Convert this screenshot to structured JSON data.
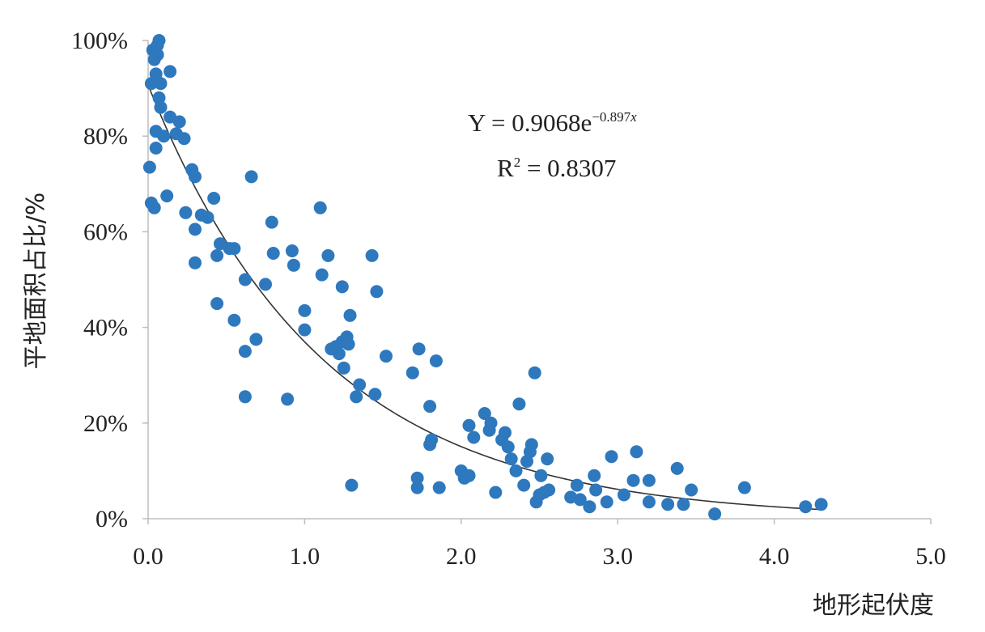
{
  "chart_data": {
    "type": "scatter",
    "xlabel": "地形起伏度",
    "ylabel": "平地面积占比/%",
    "xlim": [
      0,
      5
    ],
    "ylim": [
      0,
      100
    ],
    "x_ticks": [
      "0.0",
      "1.0",
      "2.0",
      "3.0",
      "4.0",
      "5.0"
    ],
    "y_ticks": [
      "0%",
      "20%",
      "40%",
      "60%",
      "80%",
      "100%"
    ],
    "grid": false,
    "legend": "none",
    "point_color": "#2e78be",
    "trendline": {
      "type": "exponential",
      "a": 0.9068,
      "b": -0.897,
      "x_range": [
        0,
        4.3
      ],
      "color": "#333333",
      "equation_text": {
        "base": "Y = 0.9068e",
        "exponent": "−0.897",
        "exponent_var": "x"
      },
      "r2_text": {
        "label": "R",
        "power": "2",
        "value": " = 0.8307"
      }
    },
    "points": [
      [
        0.02,
        91
      ],
      [
        0.03,
        98
      ],
      [
        0.04,
        96
      ],
      [
        0.05,
        97
      ],
      [
        0.06,
        99
      ],
      [
        0.07,
        100
      ],
      [
        0.05,
        93
      ],
      [
        0.06,
        97
      ],
      [
        0.08,
        91
      ],
      [
        0.07,
        88
      ],
      [
        0.08,
        86
      ],
      [
        0.05,
        81
      ],
      [
        0.05,
        77.5
      ],
      [
        0.14,
        93.5
      ],
      [
        0.14,
        84
      ],
      [
        0.18,
        80.5
      ],
      [
        0.2,
        83
      ],
      [
        0.1,
        80
      ],
      [
        0.23,
        79.5
      ],
      [
        0.01,
        73.5
      ],
      [
        0.02,
        66
      ],
      [
        0.04,
        65
      ],
      [
        0.12,
        67.5
      ],
      [
        0.28,
        73
      ],
      [
        0.3,
        71.5
      ],
      [
        0.24,
        64
      ],
      [
        0.34,
        63.5
      ],
      [
        0.38,
        63
      ],
      [
        0.3,
        60.5
      ],
      [
        0.42,
        67
      ],
      [
        0.3,
        53.5
      ],
      [
        0.46,
        57.5
      ],
      [
        0.44,
        55
      ],
      [
        0.52,
        56.5
      ],
      [
        0.55,
        56.5
      ],
      [
        0.44,
        45
      ],
      [
        0.55,
        41.5
      ],
      [
        0.62,
        50
      ],
      [
        0.62,
        35
      ],
      [
        0.69,
        37.5
      ],
      [
        0.62,
        25.5
      ],
      [
        0.66,
        71.5
      ],
      [
        0.75,
        49
      ],
      [
        0.79,
        62
      ],
      [
        0.8,
        55.5
      ],
      [
        0.89,
        25
      ],
      [
        0.92,
        56
      ],
      [
        0.93,
        53
      ],
      [
        1.0,
        43.5
      ],
      [
        1.0,
        39.5
      ],
      [
        1.1,
        65
      ],
      [
        1.11,
        51
      ],
      [
        1.15,
        55
      ],
      [
        1.17,
        35.5
      ],
      [
        1.2,
        36
      ],
      [
        1.22,
        34.5
      ],
      [
        1.24,
        37
      ],
      [
        1.24,
        48.5
      ],
      [
        1.25,
        31.5
      ],
      [
        1.27,
        38
      ],
      [
        1.28,
        36.5
      ],
      [
        1.29,
        42.5
      ],
      [
        1.3,
        7
      ],
      [
        1.33,
        25.5
      ],
      [
        1.35,
        28
      ],
      [
        1.43,
        55
      ],
      [
        1.45,
        26
      ],
      [
        1.46,
        47.5
      ],
      [
        1.52,
        34
      ],
      [
        1.69,
        30.5
      ],
      [
        1.73,
        35.5
      ],
      [
        1.72,
        8.5
      ],
      [
        1.72,
        6.5
      ],
      [
        1.8,
        23.5
      ],
      [
        1.8,
        15.5
      ],
      [
        1.81,
        16.5
      ],
      [
        1.84,
        33
      ],
      [
        1.86,
        6.5
      ],
      [
        2.0,
        10
      ],
      [
        2.02,
        8.5
      ],
      [
        2.05,
        9
      ],
      [
        2.05,
        19.5
      ],
      [
        2.08,
        17
      ],
      [
        2.15,
        22
      ],
      [
        2.18,
        18.5
      ],
      [
        2.19,
        20
      ],
      [
        2.22,
        5.5
      ],
      [
        2.26,
        16.5
      ],
      [
        2.28,
        18
      ],
      [
        2.3,
        15
      ],
      [
        2.32,
        12.5
      ],
      [
        2.35,
        10
      ],
      [
        2.37,
        24
      ],
      [
        2.4,
        7
      ],
      [
        2.42,
        12
      ],
      [
        2.44,
        14
      ],
      [
        2.45,
        15.5
      ],
      [
        2.47,
        30.5
      ],
      [
        2.48,
        3.5
      ],
      [
        2.5,
        5
      ],
      [
        2.51,
        9
      ],
      [
        2.53,
        5.5
      ],
      [
        2.55,
        12.5
      ],
      [
        2.56,
        6
      ],
      [
        2.7,
        4.5
      ],
      [
        2.74,
        7
      ],
      [
        2.76,
        4
      ],
      [
        2.82,
        2.5
      ],
      [
        2.85,
        9
      ],
      [
        2.86,
        6
      ],
      [
        2.93,
        3.5
      ],
      [
        2.96,
        13
      ],
      [
        3.04,
        5
      ],
      [
        3.1,
        8
      ],
      [
        3.12,
        14
      ],
      [
        3.2,
        3.5
      ],
      [
        3.2,
        8
      ],
      [
        3.32,
        3
      ],
      [
        3.38,
        10.5
      ],
      [
        3.42,
        3
      ],
      [
        3.47,
        6
      ],
      [
        3.62,
        1
      ],
      [
        3.81,
        6.5
      ],
      [
        4.2,
        2.5
      ],
      [
        4.3,
        3
      ]
    ]
  }
}
